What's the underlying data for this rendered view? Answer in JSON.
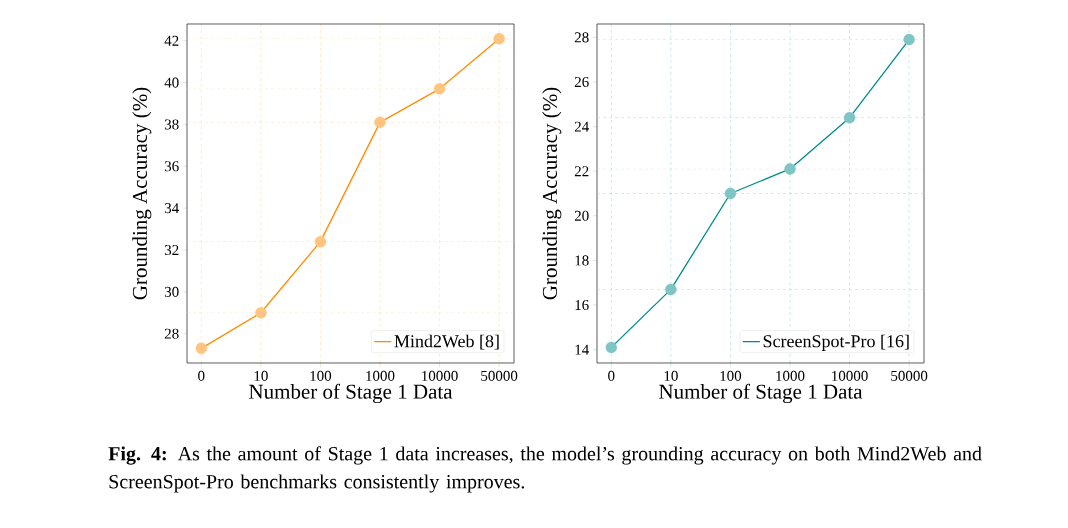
{
  "chart_data": [
    {
      "type": "line",
      "xlabel": "Number of Stage 1 Data",
      "ylabel": "Grounding Accuracy (%)",
      "categories": [
        "0",
        "10",
        "100",
        "1000",
        "10000",
        "50000"
      ],
      "series": [
        {
          "name": "Mind2Web [8]",
          "color": "#ff8c00",
          "values": [
            27.3,
            29.0,
            32.4,
            38.1,
            39.7,
            42.1
          ]
        }
      ],
      "ylim": [
        26.6,
        42.8
      ],
      "yticks": [
        28,
        30,
        32,
        34,
        36,
        38,
        40,
        42
      ],
      "grid": "x",
      "legend": "bottom right",
      "marker": "circle",
      "line_style": "solid",
      "ref_lines": [
        {
          "axis": "y",
          "value": 29.0,
          "color": "#ffddb2",
          "line_style": "dashed"
        },
        {
          "axis": "y",
          "value": 32.4,
          "color": "#ffddb2",
          "line_style": "dashed"
        },
        {
          "axis": "y",
          "value": 38.1,
          "color": "#ffddb2",
          "line_style": "dashed"
        },
        {
          "axis": "y",
          "value": 39.7,
          "color": "#ffddb2",
          "line_style": "dashed"
        },
        {
          "axis": "y",
          "value": 42.1,
          "color": "#ffddb2",
          "line_style": "dashed"
        }
      ],
      "annotations": [
        "**Fig. 4:** As the amount of Stage 1 data increases, the model’s grounding accuracy on both Mind2Web and ScreenSpot-Pro benchmarks consistently improves."
      ]
    },
    {
      "type": "line",
      "xlabel": "Number of Stage 1 Data",
      "ylabel": "Grounding Accuracy (%)",
      "categories": [
        "0",
        "10",
        "100",
        "1000",
        "10000",
        "50000"
      ],
      "series": [
        {
          "name": "ScreenSpot-Pro [16]",
          "color": "#008b8b",
          "values": [
            14.1,
            16.7,
            21.0,
            22.1,
            24.4,
            27.9
          ]
        }
      ],
      "ylim": [
        13.4,
        28.6
      ],
      "yticks": [
        14,
        16,
        18,
        20,
        22,
        24,
        26,
        28
      ],
      "grid": "x",
      "legend": "bottom right",
      "marker": "circle",
      "line_style": "solid",
      "ref_lines": [
        {
          "axis": "y",
          "value": 16.7,
          "color": "#b2dcdc",
          "line_style": "dashed"
        },
        {
          "axis": "y",
          "value": 21.0,
          "color": "#b2dcdc",
          "line_style": "dashed"
        },
        {
          "axis": "y",
          "value": 22.1,
          "color": "#b2dcdc",
          "line_style": "dashed"
        },
        {
          "axis": "y",
          "value": 24.4,
          "color": "#b2dcdc",
          "line_style": "dashed"
        },
        {
          "axis": "y",
          "value": 27.9,
          "color": "#b2dcdc",
          "line_style": "dashed"
        }
      ]
    }
  ]
}
